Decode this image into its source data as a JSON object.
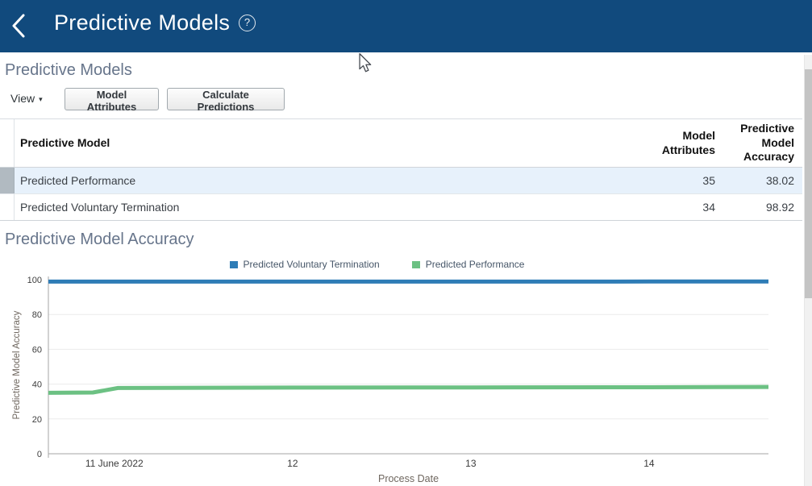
{
  "app_bar": {
    "title": "Predictive Models",
    "help_glyph": "?"
  },
  "page": {
    "section_title": "Predictive Models",
    "chart_section_title": "Predictive Model Accuracy"
  },
  "toolbar": {
    "view_label": "View",
    "view_caret": "▾",
    "model_attributes_label": "Model Attributes",
    "calculate_predictions_label": "Calculate Predictions"
  },
  "table": {
    "columns": [
      "Predictive Model",
      "Model Attributes",
      "Predictive Model Accuracy"
    ],
    "rows": [
      {
        "name": "Predicted Performance",
        "model_attributes": "35",
        "accuracy": "38.02",
        "selected": true
      },
      {
        "name": "Predicted Voluntary Termination",
        "model_attributes": "34",
        "accuracy": "98.92",
        "selected": false
      }
    ]
  },
  "chart_data": {
    "type": "line",
    "title": "Predictive Model Accuracy",
    "xlabel": "Process Date",
    "ylabel": "Predictive Model Accuracy",
    "ylim": [
      0,
      100
    ],
    "yticks": [
      0,
      20,
      40,
      60,
      80,
      100
    ],
    "xlim": [
      10.63,
      14.67
    ],
    "xticks": [
      {
        "value": 11,
        "label": "11 June 2022"
      },
      {
        "value": 12,
        "label": "12"
      },
      {
        "value": 13,
        "label": "13"
      },
      {
        "value": 14,
        "label": "14"
      }
    ],
    "grid": true,
    "legend_position": "top",
    "series": [
      {
        "name": "Predicted Voluntary Termination",
        "color": "#2e7cb6",
        "points": [
          [
            10.63,
            98.9
          ],
          [
            11,
            98.9
          ],
          [
            12,
            98.9
          ],
          [
            13,
            98.9
          ],
          [
            14,
            98.92
          ],
          [
            14.67,
            98.92
          ]
        ]
      },
      {
        "name": "Predicted Performance",
        "color": "#6cc183",
        "points": [
          [
            10.63,
            35.0
          ],
          [
            10.88,
            35.2
          ],
          [
            11.02,
            37.8
          ],
          [
            12,
            38.0
          ],
          [
            13,
            38.1
          ],
          [
            14,
            38.2
          ],
          [
            14.67,
            38.4
          ]
        ]
      }
    ]
  },
  "colors": {
    "app_bar": "#114a7d",
    "selected_row_bg": "#e7f1fb",
    "selected_gutter": "#b1bac1",
    "series_blue": "#2e7cb6",
    "series_green": "#6cc183"
  }
}
